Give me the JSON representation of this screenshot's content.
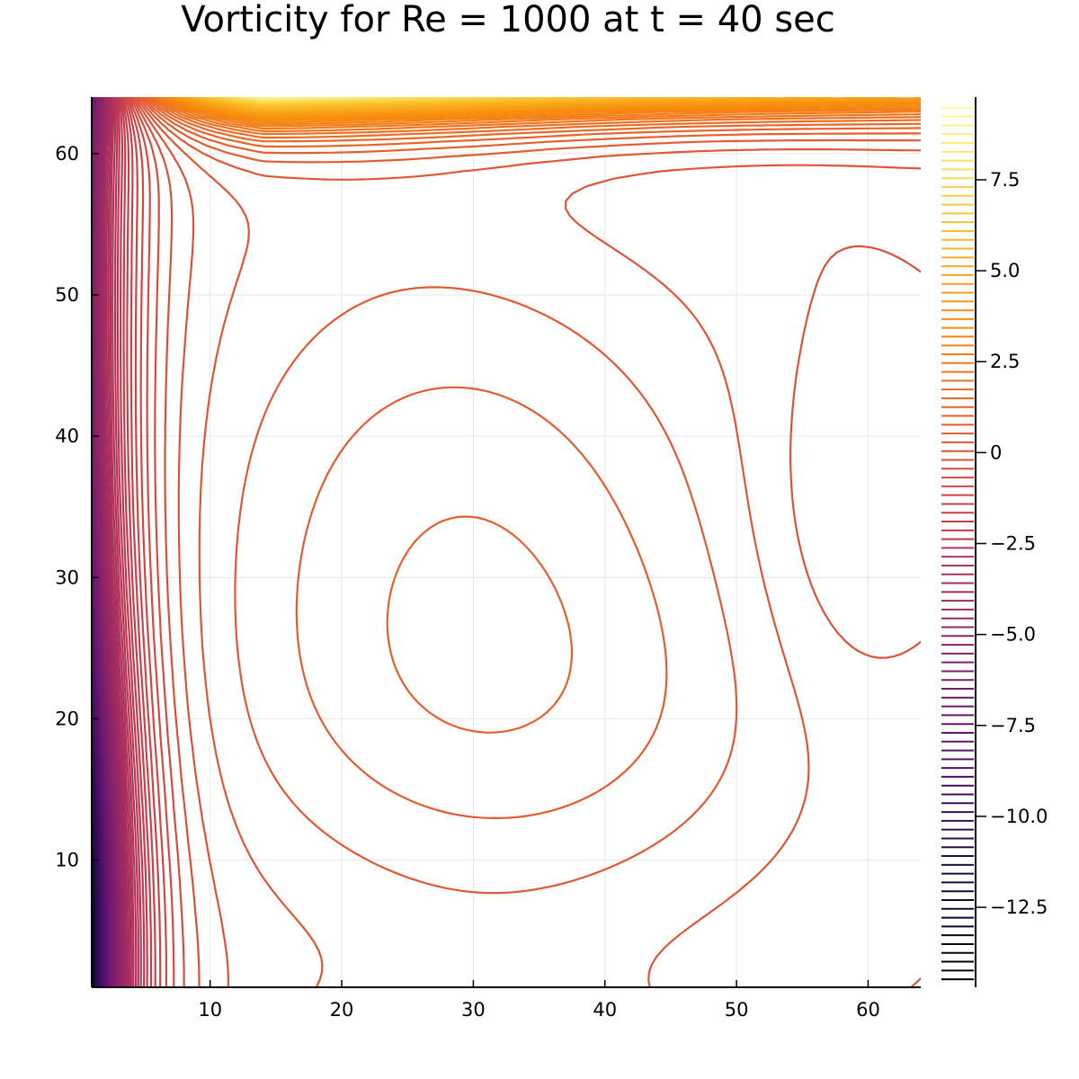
{
  "chart_data": {
    "type": "contour",
    "title": "Vorticity for Re = 1000 at t = 40 sec",
    "xlabel": "",
    "ylabel": "",
    "xlim": [
      1,
      64
    ],
    "ylim": [
      1,
      64
    ],
    "grid": true,
    "x_ticks": [
      10,
      20,
      30,
      40,
      50,
      60
    ],
    "y_ticks": [
      10,
      20,
      30,
      40,
      50,
      60
    ],
    "colormap": "inferno",
    "colorbar": {
      "range": [
        -14.6,
        9.6
      ],
      "ticks": [
        -12.5,
        -10.0,
        -7.5,
        -5.0,
        -2.5,
        0,
        2.5,
        5.0,
        7.5
      ],
      "tick_labels": [
        "−12.5",
        "−10.0",
        "−7.5",
        "−5.0",
        "−2.5",
        "0",
        "2.5",
        "5.0",
        "7.5"
      ],
      "levels": 100
    },
    "features": {
      "primary_vortex_center": [
        29,
        34
      ],
      "left_wall_boundary_layer": "strong negative vorticity",
      "top_lid_boundary_layer": "strong positive vorticity"
    }
  },
  "colors": {
    "axis": "#000000",
    "grid": "#e6e6e6",
    "background": "#ffffff"
  }
}
